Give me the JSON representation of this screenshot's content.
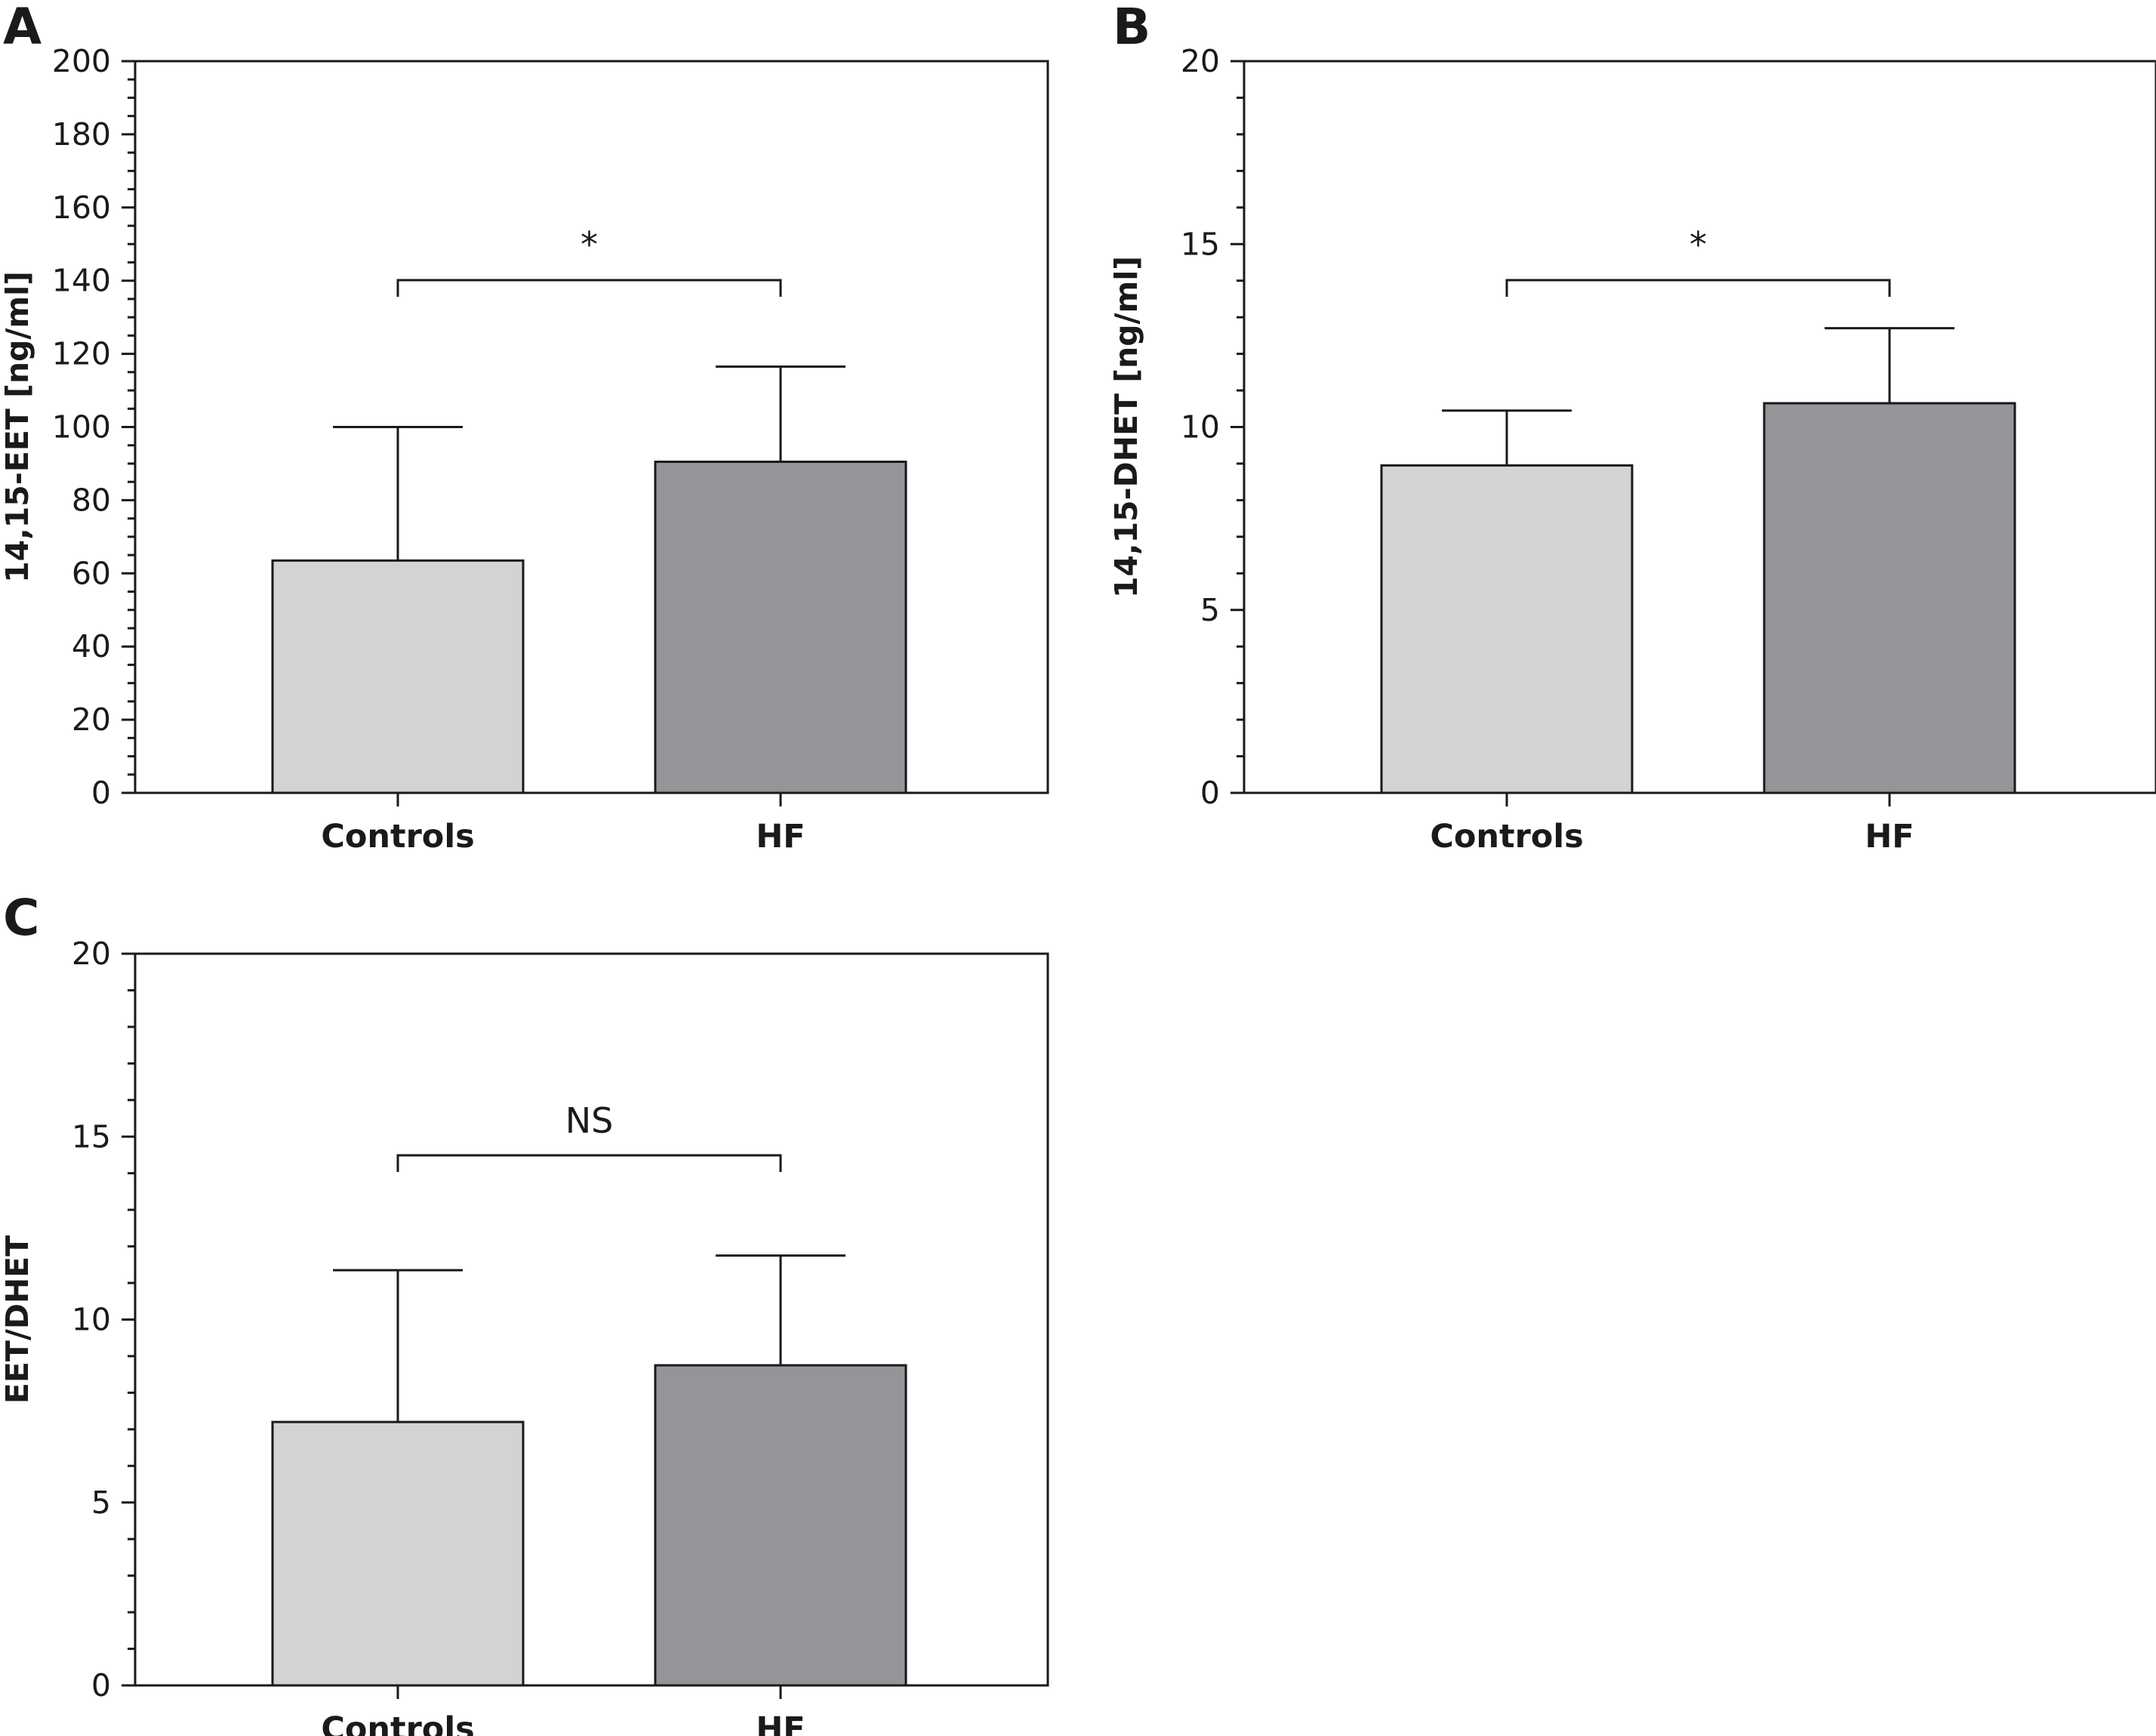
{
  "chart_data": [
    {
      "panel": "A",
      "type": "bar",
      "categories": [
        "Controls",
        "HF"
      ],
      "values": [
        63.5,
        90.5
      ],
      "error_upper": [
        100,
        116.5
      ],
      "ylabel": "14,15-EET [ng/ml]",
      "ylim": [
        0,
        200
      ],
      "yticks": [
        "0",
        "20",
        "40",
        "60",
        "80",
        "100",
        "120",
        "140",
        "160",
        "180",
        "200"
      ],
      "significance": "*",
      "bar_colors": [
        "#d2d3d5",
        "#939598"
      ]
    },
    {
      "panel": "B",
      "type": "bar",
      "categories": [
        "Controls",
        "HF"
      ],
      "values": [
        8.95,
        10.65
      ],
      "error_upper": [
        10.45,
        12.7
      ],
      "ylabel": "14,15-DHET [ng/ml]",
      "ylim": [
        0,
        20
      ],
      "yticks": [
        "0",
        "5",
        "10",
        "15",
        "20"
      ],
      "significance": "*",
      "bar_colors": [
        "#d2d3d5",
        "#939598"
      ]
    },
    {
      "panel": "C",
      "type": "bar",
      "categories": [
        "Controls",
        "HF"
      ],
      "values": [
        7.2,
        8.75
      ],
      "error_upper": [
        11.35,
        11.75
      ],
      "ylabel": "EET/DHET",
      "ylim": [
        0,
        20
      ],
      "yticks": [
        "0",
        "5",
        "10",
        "15",
        "20"
      ],
      "significance": "NS",
      "bar_colors": [
        "#d2d3d5",
        "#939598"
      ]
    }
  ]
}
